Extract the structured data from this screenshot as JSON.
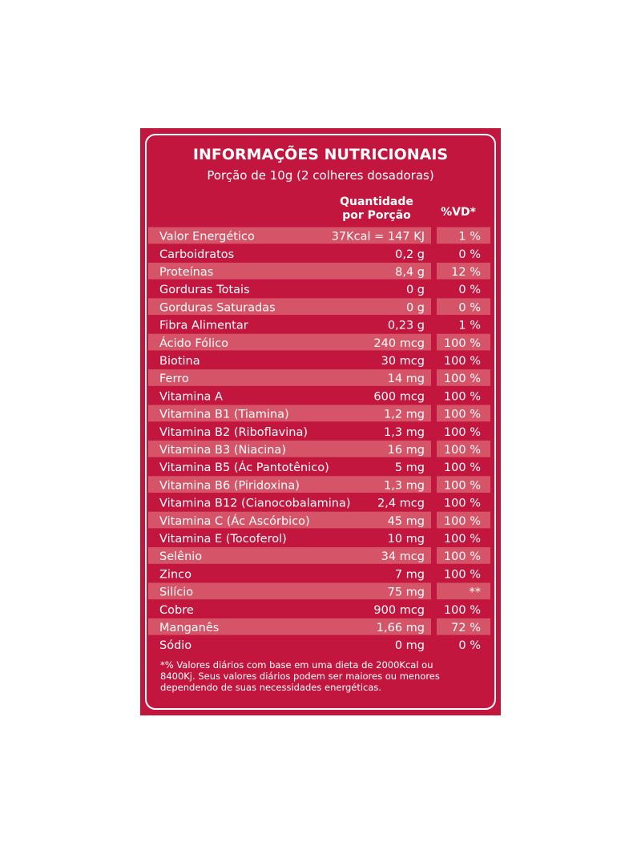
{
  "header": {
    "title": "INFORMAÇÕES NUTRICIONAIS",
    "subtitle": "Porção de 10g (2 colheres dosadoras)"
  },
  "table": {
    "columns": [
      "Quantidade\npor Porção",
      "%VD*"
    ],
    "rows": [
      [
        "Valor Energético",
        "37Kcal = 147 KJ",
        "1 %"
      ],
      [
        "Carboidratos",
        "0,2 g",
        "0 %"
      ],
      [
        "Proteínas",
        "8,4 g",
        "12 %"
      ],
      [
        "Gorduras Totais",
        "0 g",
        "0 %"
      ],
      [
        "Gorduras Saturadas",
        "0 g",
        "0 %"
      ],
      [
        "Fibra Alimentar",
        "0,23 g",
        "1 %"
      ],
      [
        "Ácido Fólico",
        "240 mcg",
        "100 %"
      ],
      [
        "Biotina",
        "30 mcg",
        "100 %"
      ],
      [
        "Ferro",
        "14 mg",
        "100 %"
      ],
      [
        "Vitamina A",
        "600 mcg",
        "100 %"
      ],
      [
        "Vitamina B1 (Tiamina)",
        "1,2 mg",
        "100 %"
      ],
      [
        "Vitamina B2 (Riboflavina)",
        "1,3 mg",
        "100 %"
      ],
      [
        "Vitamina B3 (Niacina)",
        "16 mg",
        "100 %"
      ],
      [
        "Vitamina B5 (Ác Pantotênico)",
        "5 mg",
        "100 %"
      ],
      [
        "Vitamina B6 (Piridoxina)",
        "1,3 mg",
        "100 %"
      ],
      [
        "Vitamina B12 (Cianocobalamina)",
        "2,4 mcg",
        "100 %"
      ],
      [
        "Vitamina C (Ác Ascórbico)",
        "45 mg",
        "100 %"
      ],
      [
        "Vitamina E (Tocoferol)",
        "10 mg",
        "100 %"
      ],
      [
        "Selênio",
        "34 mcg",
        "100 %"
      ],
      [
        "Zinco",
        "7 mg",
        "100 %"
      ],
      [
        "Silício",
        "75 mg",
        "**"
      ],
      [
        "Cobre",
        "900 mcg",
        "100 %"
      ],
      [
        "Manganês",
        "1,66 mg",
        "72 %"
      ],
      [
        "Sódio",
        "0 mg",
        "0 %"
      ]
    ]
  },
  "footnote": [
    "*% Valores diários com base em uma dieta de 2000Kcal ou",
    "8400Kj. Seus valores diários podem ser maiores ou  menores",
    "dependendo de suas necessidades energéticas."
  ]
}
